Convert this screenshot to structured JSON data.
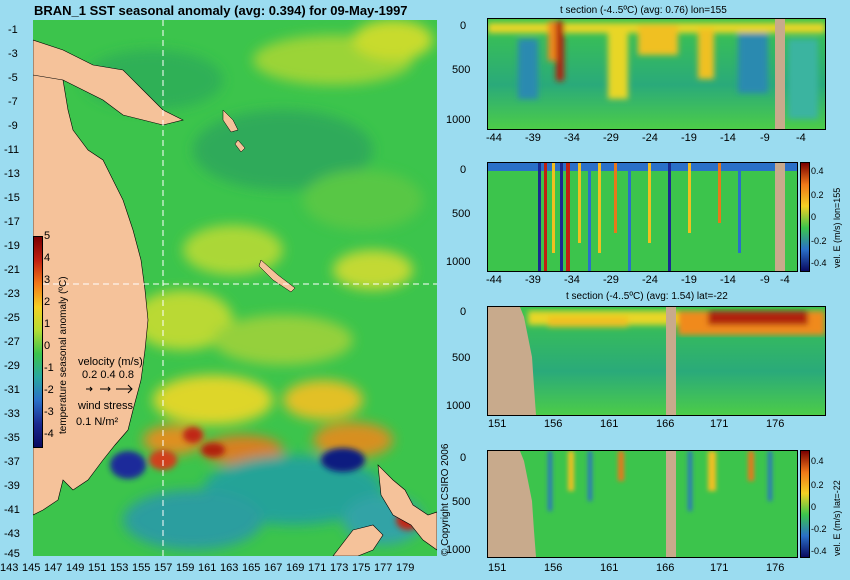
{
  "map": {
    "title": "BRAN_1 SST seasonal anomaly (avg: 0.394) for 09-May-1997",
    "lat_ticks": [
      "-1",
      "-3",
      "-5",
      "-7",
      "-9",
      "-11",
      "-13",
      "-15",
      "-17",
      "-19",
      "-21",
      "-23",
      "-25",
      "-27",
      "-29",
      "-31",
      "-33",
      "-35",
      "-37",
      "-39",
      "-41",
      "-43",
      "-45"
    ],
    "lon_ticks": [
      "143",
      "145",
      "147",
      "149",
      "151",
      "153",
      "155",
      "157",
      "159",
      "161",
      "163",
      "165",
      "167",
      "169",
      "171",
      "173",
      "175",
      "177",
      "179"
    ],
    "colorbar": {
      "ticks": [
        "5",
        "4",
        "3",
        "2",
        "1",
        "0",
        "-1",
        "-2",
        "-3",
        "-4"
      ],
      "label": "temperature seasonal anomaly (ºC)"
    },
    "velocity_legend": {
      "label": "velocity (m/s)",
      "values": "0.2 0.4 0.8"
    },
    "wind_legend": {
      "label": "wind stress",
      "value": "0.1 N/m²"
    },
    "copyright": "© Copyright CSIRO 2006"
  },
  "panels": [
    {
      "title": "t section (-4..5ºC) (avg: 0.76) lon=155",
      "x_ticks": [
        "-44",
        "-39",
        "-34",
        "-29",
        "-24",
        "-19",
        "-14",
        "-9",
        "-4"
      ],
      "y_ticks": [
        "0",
        "500",
        "1000"
      ]
    },
    {
      "title": "",
      "x_ticks": [
        "-44",
        "-39",
        "-34",
        "-29",
        "-24",
        "-19",
        "-14",
        "-9",
        "-4"
      ],
      "y_ticks": [
        "0",
        "500",
        "1000"
      ],
      "cb_ticks": [
        "0.4",
        "0.2",
        "0",
        "-0.2",
        "-0.4"
      ],
      "cb_label": "vel. E (m/s) lon=155"
    },
    {
      "title": "t section (-4..5ºC) (avg: 1.54) lat=-22",
      "x_ticks": [
        "151",
        "156",
        "161",
        "166",
        "171",
        "176"
      ],
      "y_ticks": [
        "0",
        "500",
        "1000"
      ]
    },
    {
      "title": "",
      "x_ticks": [
        "151",
        "156",
        "161",
        "166",
        "171",
        "176"
      ],
      "y_ticks": [
        "0",
        "500",
        "1000"
      ],
      "cb_ticks": [
        "0.4",
        "0.2",
        "0",
        "-0.2",
        "-0.4"
      ],
      "cb_label": "vel. E (m/s) lat=-22"
    }
  ],
  "colors": {
    "background": "#9bdcf0",
    "land": "#f5c29a",
    "section_land": "#c8aa8c",
    "ocean_base": "#35c24a"
  }
}
